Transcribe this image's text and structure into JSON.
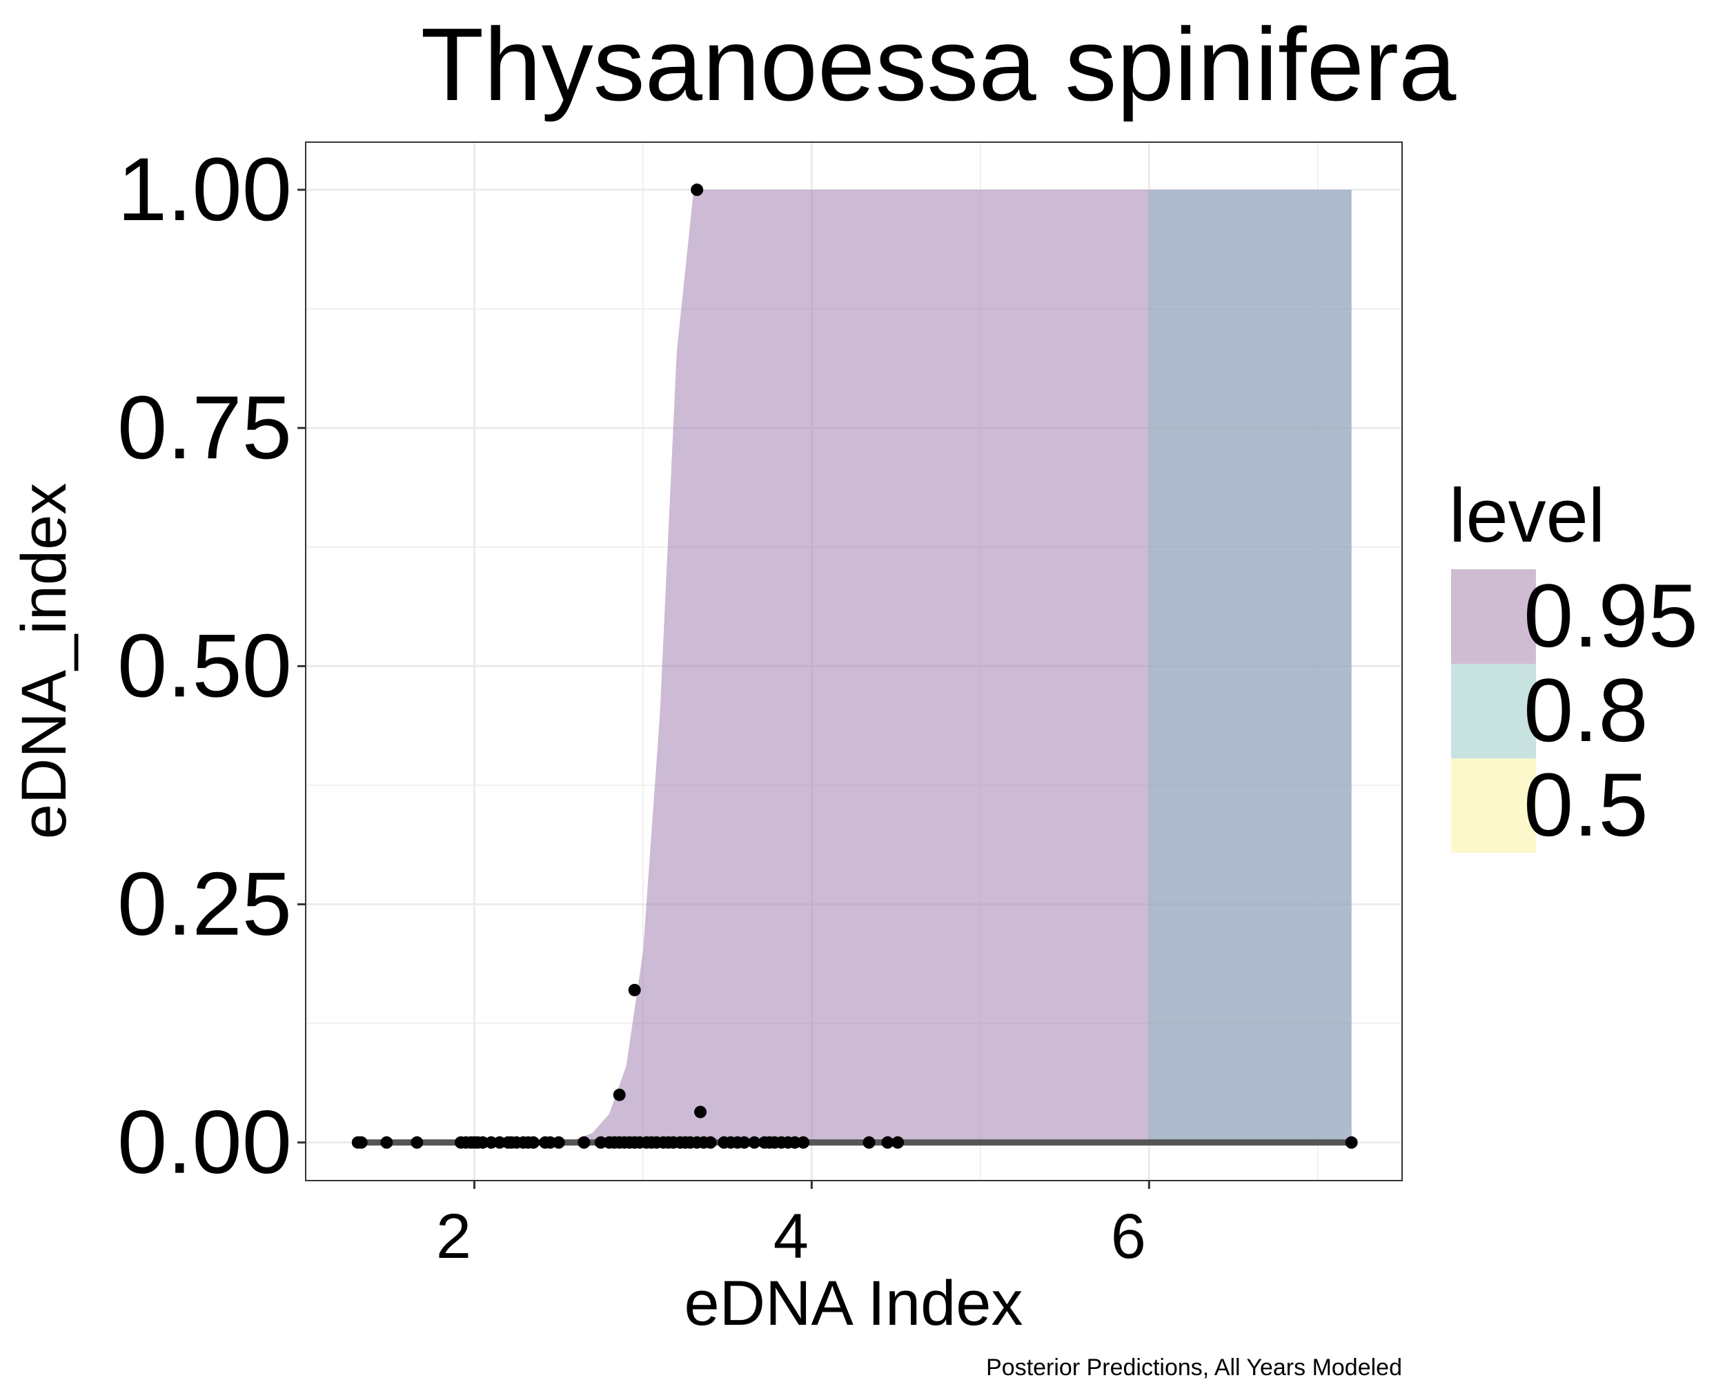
{
  "chart_data": {
    "type": "area",
    "title": "Thysanoessa spinifera",
    "xlabel": "eDNA Index",
    "ylabel": "eDNA_index",
    "caption": "Posterior Predictions, All Years Modeled",
    "xlim": [
      1.0,
      7.5
    ],
    "ylim": [
      -0.04,
      1.05
    ],
    "x_ticks": [
      2,
      4,
      6
    ],
    "x_tick_labels": [
      "2",
      "4",
      "6"
    ],
    "y_ticks": [
      0.0,
      0.25,
      0.5,
      0.75,
      1.0
    ],
    "y_tick_labels": [
      "0.00",
      "0.25",
      "0.50",
      "0.75",
      "1.00"
    ],
    "grid": true,
    "legend": {
      "title": "level",
      "position": "right",
      "entries": [
        {
          "label": "0.95",
          "color": "#cfbcd2"
        },
        {
          "label": "0.8",
          "color": "#c8e2e0"
        },
        {
          "label": "0.5",
          "color": "#fcf8cb"
        }
      ]
    },
    "bands": [
      {
        "level": "0.95",
        "color": "#a481b0",
        "opacity": 0.55,
        "x": [
          1.3,
          2.55,
          2.7,
          2.8,
          2.9,
          3.0,
          3.1,
          3.2,
          3.3,
          3.4,
          6.14,
          7.2
        ],
        "lower": [
          0,
          0,
          0,
          0,
          0,
          0,
          0,
          0,
          0,
          0,
          0,
          0
        ],
        "upper": [
          0,
          0,
          0.01,
          0.03,
          0.08,
          0.2,
          0.45,
          0.83,
          1.0,
          1.0,
          1.0,
          1.0
        ]
      },
      {
        "level": "0.8",
        "color": "#7fbfc0",
        "opacity": 0.4,
        "x": [
          6.0,
          7.2
        ],
        "lower": [
          0,
          0
        ],
        "upper": [
          1.0,
          1.0
        ]
      }
    ],
    "line": {
      "name": "median",
      "color": "#555555",
      "x": [
        1.3,
        7.2
      ],
      "y": [
        0,
        0
      ]
    },
    "points": {
      "color": "#000000",
      "x": [
        1.31,
        1.33,
        1.48,
        1.66,
        1.92,
        1.95,
        1.98,
        2.0,
        2.02,
        2.05,
        2.1,
        2.15,
        2.2,
        2.22,
        2.25,
        2.29,
        2.32,
        2.35,
        2.42,
        2.45,
        2.5,
        2.65,
        2.75,
        2.8,
        2.83,
        2.86,
        2.89,
        2.92,
        2.95,
        2.98,
        3.02,
        3.05,
        3.08,
        3.12,
        3.15,
        3.18,
        3.22,
        3.25,
        3.28,
        3.32,
        3.36,
        3.4,
        3.48,
        3.52,
        3.56,
        3.6,
        3.66,
        3.72,
        3.75,
        3.78,
        3.82,
        3.86,
        3.9,
        3.95,
        4.34,
        4.45,
        4.51,
        7.2,
        3.32,
        2.95,
        2.86,
        3.34
      ],
      "y": [
        0,
        0,
        0,
        0,
        0,
        0,
        0,
        0,
        0,
        0,
        0,
        0,
        0,
        0,
        0,
        0,
        0,
        0,
        0,
        0,
        0,
        0,
        0,
        0,
        0,
        0,
        0,
        0,
        0,
        0,
        0,
        0,
        0,
        0,
        0,
        0,
        0,
        0,
        0,
        0,
        0,
        0,
        0,
        0,
        0,
        0,
        0,
        0,
        0,
        0,
        0,
        0,
        0,
        0,
        0,
        0,
        0,
        0,
        1.0,
        0.16,
        0.05,
        0.032
      ]
    }
  }
}
